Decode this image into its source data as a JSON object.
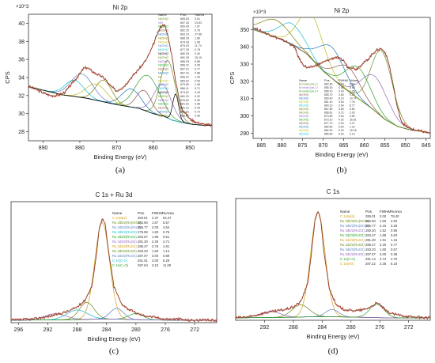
{
  "chart_data": [
    {
      "id": "a",
      "type": "line",
      "title": "Ni 2p",
      "exponent": "×10^3",
      "xlabel": "Binding Energy (eV)",
      "ylabel": "CPS",
      "xlim": [
        894,
        844
      ],
      "ylim": [
        27,
        41
      ],
      "xticks": [
        890,
        880,
        870,
        860,
        850
      ],
      "yticks": [
        28,
        30,
        32,
        34,
        36,
        38,
        40
      ],
      "caption": "(a)",
      "legend_headers": [
        "Name",
        "Pos.",
        "%Area"
      ],
      "legend_rows": [
        [
          "Ni(OH)2",
          "855.63",
          "3.91"
        ],
        [
          "NiO",
          "857.43",
          "23.63"
        ],
        [
          "Ni(OH)2",
          "859.43",
          "1.67"
        ],
        [
          "Ni(OH)2",
          "862.25",
          "0.76"
        ],
        [
          "Ni(OH)2",
          "863.23",
          "27.66"
        ],
        [
          "Ni(OH)2",
          "868.25",
          "1.89"
        ],
        [
          "Ni(OH)2",
          "874.43",
          "1.96"
        ],
        [
          "Ni(OH)2",
          "875.03",
          "11.74"
        ],
        [
          "Ni(OH)2",
          "877.25",
          "0.78"
        ],
        [
          "Ni(OH)2",
          "880.03",
          "0.40"
        ],
        [
          "Ni(OH)2",
          "881.25",
          "15.19"
        ],
        [
          "Ni(OH)2",
          "886.03",
          "0.86"
        ],
        [
          "Ni(OH)2",
          "856.31",
          "0.95"
        ],
        [
          "Ni(OH)2",
          "857.01",
          "0.77"
        ],
        [
          "Ni(OH)2",
          "867.41",
          "0.88"
        ],
        [
          "Ni",
          "856.01",
          "1.26"
        ],
        [
          "Ni(OH)2",
          "869.61",
          "0.54"
        ],
        [
          "Ni(OH)2",
          "873.83",
          "1.45"
        ],
        [
          "Ni(OH)2",
          "866.11",
          "0.71"
        ],
        [
          "Ni(OH)2",
          "873.81",
          "0.43"
        ],
        [
          "Ni(OH)2",
          "861.31",
          "0.32"
        ],
        [
          "Ni(OH)2",
          "876.61",
          "0.30"
        ],
        [
          "Ni(OH)2",
          "861.81",
          "0.66"
        ],
        [
          "Ni(OH)2",
          "881.21",
          "0.25"
        ],
        [
          "Ni(OH)2",
          "860.81",
          "0.73"
        ],
        [
          "Ni(OH)2",
          "883.71",
          "0.36"
        ]
      ],
      "envelope": {
        "x": [
          894,
          892,
          890,
          888,
          886,
          884,
          882,
          880,
          879,
          878,
          876,
          874,
          873,
          872,
          870,
          868,
          866,
          864,
          862,
          861,
          860,
          859,
          858,
          857,
          856,
          855,
          854,
          853,
          852,
          850,
          848,
          846,
          844
        ],
        "y": [
          33.0,
          32.7,
          32.3,
          32.0,
          32.0,
          32.4,
          33.4,
          34.4,
          35.0,
          35.1,
          34.5,
          34.1,
          33.8,
          33.2,
          32.5,
          33.0,
          34.0,
          34.9,
          35.9,
          36.7,
          37.6,
          38.7,
          39.6,
          39.9,
          38.6,
          36.6,
          33.9,
          31.7,
          30.4,
          29.4,
          29.0,
          28.8,
          28.7
        ]
      },
      "background": {
        "x": [
          894,
          885,
          878,
          870,
          864,
          860,
          857,
          855,
          852,
          849,
          846,
          844
        ],
        "y": [
          33.0,
          32.1,
          31.7,
          31.0,
          30.6,
          30.0,
          29.7,
          29.3,
          29.0,
          28.8,
          28.7,
          28.7
        ]
      },
      "peaks": [
        {
          "center": 856.0,
          "height": 6.4,
          "width": 2.0,
          "color": "#6b8e23"
        },
        {
          "center": 857.5,
          "height": 3.5,
          "width": 2.4,
          "color": "#9467bd"
        },
        {
          "center": 861.5,
          "height": 4.0,
          "width": 3.2,
          "color": "#2ca02c"
        },
        {
          "center": 862.5,
          "height": 2.2,
          "width": 2.0,
          "color": "#8c564b"
        },
        {
          "center": 866.0,
          "height": 2.0,
          "width": 2.6,
          "color": "#1f77b4"
        },
        {
          "center": 873.5,
          "height": 2.4,
          "width": 2.2,
          "color": "#808000"
        },
        {
          "center": 875.5,
          "height": 1.8,
          "width": 2.8,
          "color": "#bcbd22"
        },
        {
          "center": 879.5,
          "height": 2.6,
          "width": 3.0,
          "color": "#5b7fbf"
        },
        {
          "center": 881.5,
          "height": 1.8,
          "width": 2.6,
          "color": "#17becf"
        },
        {
          "center": 853.9,
          "height": 3.0,
          "width": 0.8,
          "color": "#000000"
        }
      ],
      "colors": {
        "data": "#b03a2e",
        "envelope": "#7a4b2a",
        "background": "#555555"
      }
    },
    {
      "id": "b",
      "type": "line",
      "title": "Ni 2p",
      "exponent": "×10^3",
      "xlabel": "Binding Energy (eV)",
      "ylabel": "CPS",
      "xlim": [
        887,
        844
      ],
      "ylim": [
        287,
        357
      ],
      "xticks": [
        885,
        880,
        875,
        870,
        865,
        860,
        855,
        850,
        845
      ],
      "yticks": [
        290,
        300,
        310,
        320,
        330,
        340,
        350
      ],
      "caption": "(b)",
      "legend_headers": [
        "Name",
        "Pos.",
        "FWHM",
        "%Area"
      ],
      "legend_rows": [
        [
          "Ni metal (sat.) 1",
          "852.60",
          "2.00",
          "6.84"
        ],
        [
          "Ni metal (sat.) 2",
          "856.30",
          "4.05",
          "6.69"
        ],
        [
          "Ni metal (sat.) 3",
          "858.70",
          "4.00",
          "1.26"
        ],
        [
          "Ni(OH)2",
          "855.70",
          "3.60",
          "3.20"
        ],
        [
          "Ni(OH)2",
          "859.40",
          "8.10",
          "10.74"
        ],
        [
          "Ni(OH)2",
          "861.40",
          "3.54",
          "7.76"
        ],
        [
          "Ni(OH)2",
          "864.10",
          "3.54",
          "8.77"
        ],
        [
          "Ni(OH)2",
          "867.80",
          "3.80",
          "5.82"
        ],
        [
          "Ni(OH)2",
          "868.61",
          "3.72",
          "2.00"
        ],
        [
          "Ni(OH)2",
          "870.60",
          "2.54",
          "0.82"
        ],
        [
          "Ni(OH)2",
          "873.10",
          "4.02",
          "26.01"
        ],
        [
          "Ni(OH)2",
          "877.70",
          "2.94",
          "3.37"
        ],
        [
          "Ni(OH)2",
          "880.50",
          "5.60",
          "1.22"
        ],
        [
          "Ni(OH)2",
          "882.30",
          "5.30",
          "15.18"
        ],
        [
          "Ni(OH)2",
          "885.50",
          "5.60",
          "3.14"
        ]
      ],
      "envelope": {
        "x": [
          887,
          885,
          883,
          881,
          879,
          877,
          876,
          875,
          874,
          873,
          871,
          869,
          867,
          865,
          864,
          863,
          862,
          861,
          860,
          859,
          858,
          857,
          856,
          855,
          854,
          853,
          852,
          851,
          850,
          848,
          846,
          844
        ],
        "y": [
          351,
          349,
          347,
          345,
          343,
          340,
          334,
          330,
          328,
          328,
          330,
          332,
          334,
          332,
          328,
          328,
          327,
          329,
          331,
          333,
          336,
          338,
          339,
          337,
          330,
          318,
          305,
          297,
          294,
          292,
          291,
          290
        ]
      },
      "background": {
        "x": [
          887,
          882,
          878,
          874,
          870,
          866,
          862,
          858,
          855,
          852,
          849,
          846,
          844
        ],
        "y": [
          350,
          346,
          342,
          336,
          326,
          318,
          311,
          304,
          298,
          294,
          292,
          291,
          290
        ]
      },
      "peaks": [
        {
          "center": 855.8,
          "height": 38,
          "width": 2.6,
          "color": "#6b8e23"
        },
        {
          "center": 857.5,
          "height": 20,
          "width": 3.2,
          "color": "#9467bd"
        },
        {
          "center": 861.5,
          "height": 18,
          "width": 3.0,
          "color": "#2ca02c"
        },
        {
          "center": 864.0,
          "height": 14,
          "width": 3.0,
          "color": "#8c564b"
        },
        {
          "center": 868.0,
          "height": 18,
          "width": 3.2,
          "color": "#1f77b4"
        },
        {
          "center": 873.0,
          "height": 26,
          "width": 3.0,
          "color": "#bcbd22"
        },
        {
          "center": 877.5,
          "height": 12,
          "width": 3.0,
          "color": "#17becf"
        },
        {
          "center": 881.5,
          "height": 10,
          "width": 3.4,
          "color": "#808000"
        }
      ],
      "colors": {
        "data": "#b03a2e",
        "envelope": "#7a4b2a",
        "background": "#555555"
      }
    },
    {
      "id": "c",
      "type": "line",
      "title": "C 1s + Ru 3d",
      "exponent": "",
      "xlabel": "Binding Energy (eV)",
      "ylabel": "",
      "xlim": [
        297,
        269
      ],
      "ylim": [
        0,
        100
      ],
      "xticks": [
        296,
        292,
        288,
        284,
        280,
        276,
        272
      ],
      "yticks": [],
      "caption": "(c)",
      "legend_headers": [
        "Name",
        "Pos.",
        "FWHM",
        "%Area"
      ],
      "legend_rows": [
        [
          "C 1s(sp2)",
          "284.61",
          "2.37",
          "64.47"
        ],
        [
          "Ru 3d5/2(Ru(OH)3)",
          "282.60",
          "1.67",
          "5.57"
        ],
        [
          "Ru 3d5/2(Ru(OH)3)",
          "286.77",
          "2.00",
          "4.54"
        ],
        [
          "Ru 3d5/2(RuO2)",
          "279.96",
          "1.60",
          "0.76"
        ],
        [
          "Ru 3d3/2(RuO2)",
          "284.67",
          "1.98",
          "0.51"
        ],
        [
          "Ru 3d3/2(RuO2)",
          "281.30",
          "2.30",
          "2.71"
        ],
        [
          "Ru 3d3/2(RuO2)",
          "285.47",
          "2.76",
          "1.81"
        ],
        [
          "Ru 3d5/2(RuO2)",
          "283.20",
          "1.60",
          "1.14"
        ],
        [
          "Ru 3d3/2(RuO2)",
          "287.07",
          "3.00",
          "0.89"
        ],
        [
          "C 1s(C-O)",
          "291.01",
          "3.00",
          "5.29"
        ],
        [
          "C 1s(C=O)",
          "287.64",
          "3.10",
          "11.09"
        ]
      ],
      "envelope": {
        "x": [
          297,
          294,
          292,
          290,
          289,
          288,
          287,
          286,
          285.5,
          285,
          284.6,
          284.2,
          283.8,
          283,
          282,
          281,
          280,
          279,
          278,
          277,
          276,
          275,
          274,
          273,
          271,
          269
        ],
        "y": [
          2,
          3,
          5,
          8,
          10,
          13,
          18,
          30,
          50,
          78,
          86,
          82,
          62,
          30,
          16,
          11,
          8,
          6,
          5,
          4,
          3,
          3,
          3,
          2,
          2,
          2
        ]
      },
      "background": {
        "x": [
          297,
          288,
          285,
          283,
          280,
          275,
          269
        ],
        "y": [
          2,
          2.5,
          3,
          3,
          2.5,
          2,
          2
        ]
      },
      "peaks": [
        {
          "center": 284.6,
          "height": 80,
          "width": 1.0,
          "color": "#d4a017"
        },
        {
          "center": 286.7,
          "height": 14,
          "width": 1.0,
          "color": "#6b8e23"
        },
        {
          "center": 282.6,
          "height": 9,
          "width": 0.9,
          "color": "#5b7fbf"
        },
        {
          "center": 288.0,
          "height": 8,
          "width": 1.4,
          "color": "#17becf"
        },
        {
          "center": 280.0,
          "height": 5,
          "width": 1.0,
          "color": "#2ca02c"
        },
        {
          "center": 291.0,
          "height": 5,
          "width": 1.5,
          "color": "#9467bd"
        }
      ],
      "colors": {
        "data": "#b03a2e",
        "envelope": "#7a4b2a",
        "background": "#555555"
      }
    },
    {
      "id": "d",
      "type": "line",
      "title": "C 1s",
      "exponent": "",
      "xlabel": "Binding Energy (eV)",
      "ylabel": "",
      "xlim": [
        296,
        269
      ],
      "ylim": [
        0,
        100
      ],
      "xticks": [
        292,
        288,
        284,
        280,
        276,
        272
      ],
      "yticks": [],
      "caption": "(d)",
      "legend_headers": [
        "Name",
        "Pos.",
        "FWHM",
        "%Area"
      ],
      "legend_rows": [
        [
          "C 1s(sp3)",
          "285.01",
          "2.00",
          "78.40"
        ],
        [
          "Ru 3d5/2(Ru(OH)3)",
          "282.60",
          "1.60",
          "4.92"
        ],
        [
          "Ru 3d5/2(Ru(OH)3)",
          "286.77",
          "2.16",
          "3.28"
        ],
        [
          "Ru 3d5/2(RuO2)",
          "280.30",
          "1.52",
          "0.95"
        ],
        [
          "Ru 3d3/2(RuO2)",
          "284.47",
          "1.68",
          "0.63"
        ],
        [
          "Ru 3d3/2(RuO2)",
          "281.30",
          "1.91",
          "1.15"
        ],
        [
          "Ru 3d3/2(RuO2)",
          "285.47",
          "2.30",
          "0.77"
        ],
        [
          "Ru 3d5/2(RuO2)",
          "283.20",
          "1.60",
          "0.57"
        ],
        [
          "Ru 3d3/2(RuO2)",
          "287.07",
          "3.00",
          "0.38"
        ],
        [
          "C 1s(C-O)",
          "291.14",
          "2.74",
          "4.75"
        ],
        [
          "C 1s(HO)",
          "287.22",
          "3.36",
          "6.19"
        ]
      ],
      "envelope": {
        "x": [
          296,
          294,
          292,
          290,
          289,
          288,
          287,
          286,
          285.5,
          285,
          284.6,
          284.2,
          283.8,
          283,
          282,
          281,
          280,
          279,
          278,
          277,
          276.5,
          276,
          275.5,
          275,
          274,
          272,
          269
        ],
        "y": [
          2,
          3,
          6,
          8,
          9,
          11,
          15,
          30,
          55,
          82,
          90,
          82,
          58,
          26,
          12,
          9,
          8,
          8,
          9,
          12,
          14,
          13,
          10,
          7,
          5,
          3,
          2
        ]
      },
      "background": {
        "x": [
          296,
          288,
          285,
          283,
          279,
          275,
          269
        ],
        "y": [
          2,
          2.5,
          3,
          3,
          2.5,
          2,
          2
        ]
      },
      "peaks": [
        {
          "center": 284.6,
          "height": 86,
          "width": 1.0,
          "color": "#d4a017"
        },
        {
          "center": 287.0,
          "height": 10,
          "width": 1.2,
          "color": "#6b8e23"
        },
        {
          "center": 282.6,
          "height": 6,
          "width": 0.9,
          "color": "#5b7fbf"
        },
        {
          "center": 291.2,
          "height": 5,
          "width": 1.4,
          "color": "#9467bd"
        },
        {
          "center": 276.4,
          "height": 11,
          "width": 1.0,
          "color": "#2ca02c"
        }
      ],
      "colors": {
        "data": "#b03a2e",
        "envelope": "#7a4b2a",
        "background": "#555555"
      }
    }
  ]
}
